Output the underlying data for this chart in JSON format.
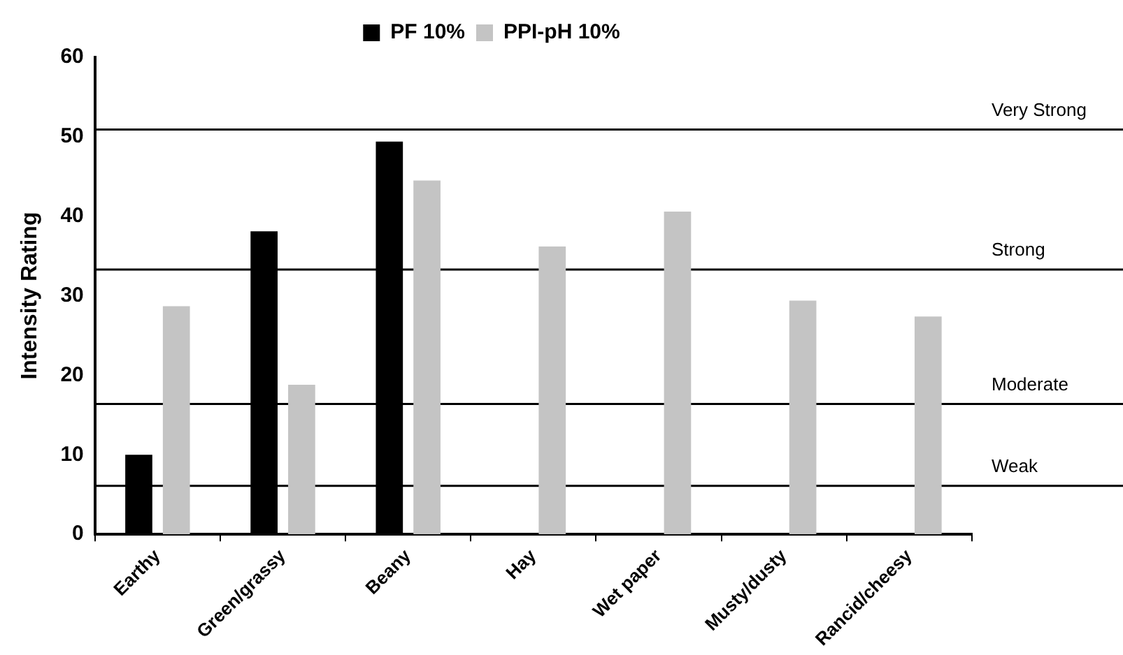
{
  "chart_data": {
    "type": "bar",
    "ylabel": "Intensity Rating",
    "categories": [
      "Earthy",
      "Green/grassy",
      "Beany",
      "Hay",
      "Wet paper",
      "Musty/dusty",
      "Rancid/cheesy"
    ],
    "series": [
      {
        "name": "PF 10%",
        "color": "#000000",
        "values": [
          10.0,
          38.1,
          49.4,
          null,
          null,
          null,
          null
        ]
      },
      {
        "name": "PPI-pH 10%",
        "color": "#c4c4c4",
        "values": [
          28.7,
          18.8,
          44.5,
          36.2,
          40.6,
          29.4,
          27.4
        ]
      }
    ],
    "ylim": [
      0,
      60
    ],
    "yticks": [
      0,
      10,
      20,
      30,
      40,
      50,
      60
    ],
    "grid": false,
    "legend": "top",
    "ref_lines": [
      {
        "axis": "y",
        "value": 50.9,
        "label": "Very Strong",
        "color": "#000000"
      },
      {
        "axis": "y",
        "value": 33.3,
        "label": "Strong",
        "color": "#000000"
      },
      {
        "axis": "y",
        "value": 16.4,
        "label": "Moderate",
        "color": "#000000"
      },
      {
        "axis": "y",
        "value": 6.1,
        "label": "Weak",
        "color": "#000000"
      }
    ]
  }
}
